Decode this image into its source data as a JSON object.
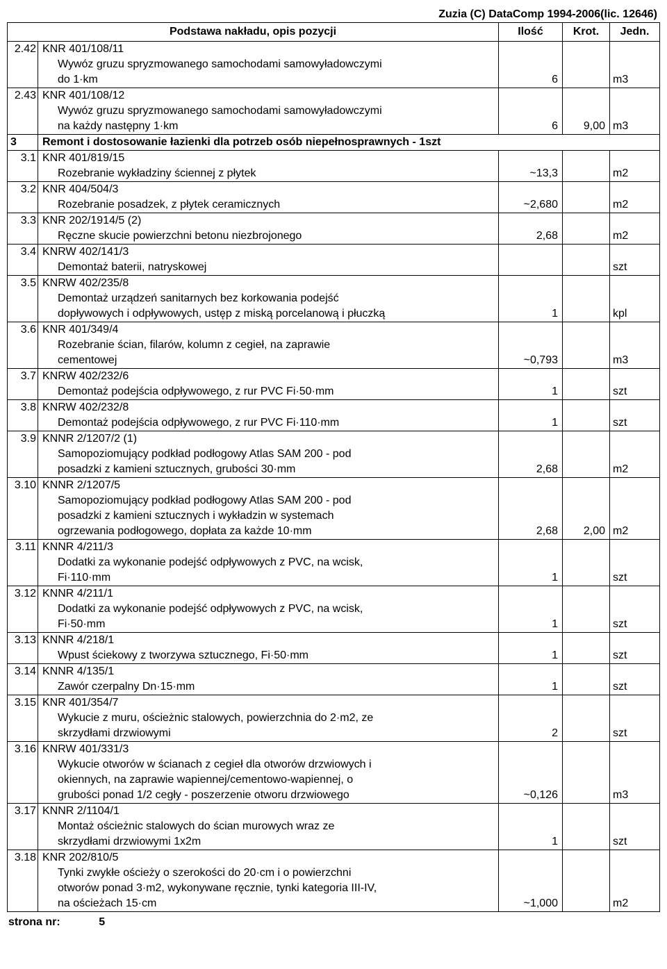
{
  "header_right": "Zuzia (C) DataComp 1994-2006(lic. 12646)",
  "columns": {
    "desc": "Podstawa nakładu, opis pozycji",
    "ilosc": "Ilość",
    "krot": "Krot.",
    "jedn": "Jedn."
  },
  "rows": [
    {
      "num": "2.42",
      "code": "KNR 401/108/11",
      "lines": [
        "Wywóz gruzu spryzmowanego samochodami samowyładowczymi",
        "do 1·km"
      ],
      "ilosc": "6",
      "krot": "",
      "jedn": "m3"
    },
    {
      "num": "2.43",
      "code": "KNR 401/108/12",
      "lines": [
        "Wywóz gruzu spryzmowanego samochodami samowyładowczymi",
        "na każdy następny 1·km"
      ],
      "ilosc": "6",
      "krot": "9,00",
      "jedn": "m3"
    },
    {
      "section": true,
      "num": "3",
      "desc": "Remont i dostosowanie łazienki dla potrzeb osób niepełnosprawnych - 1szt"
    },
    {
      "num": "3.1",
      "code": "KNR 401/819/15",
      "lines": [
        "Rozebranie wykładziny ściennej z płytek"
      ],
      "ilosc": "~13,3",
      "krot": "",
      "jedn": "m2"
    },
    {
      "num": "3.2",
      "code": "KNR 404/504/3",
      "lines": [
        "Rozebranie posadzek, z płytek ceramicznych"
      ],
      "ilosc": "~2,680",
      "krot": "",
      "jedn": "m2"
    },
    {
      "num": "3.3",
      "code": "KNR 202/1914/5 (2)",
      "lines": [
        "Ręczne skucie powierzchni betonu niezbrojonego"
      ],
      "ilosc": "2,68",
      "krot": "",
      "jedn": "m2"
    },
    {
      "num": "3.4",
      "code": "KNRW 402/141/3",
      "lines": [
        "Demontaż baterii, natryskowej"
      ],
      "ilosc": "",
      "krot": "",
      "jedn": "szt"
    },
    {
      "num": "3.5",
      "code": "KNRW 402/235/8",
      "lines": [
        "Demontaż urządzeń sanitarnych bez korkowania podejść",
        "dopływowych i odpływowych, ustęp z miską porcelanową i płuczką"
      ],
      "ilosc": "1",
      "krot": "",
      "jedn": "kpl"
    },
    {
      "num": "3.6",
      "code": "KNR 401/349/4",
      "lines": [
        "Rozebranie ścian, filarów, kolumn z cegieł, na zaprawie",
        "cementowej"
      ],
      "ilosc": "~0,793",
      "krot": "",
      "jedn": "m3"
    },
    {
      "num": "3.7",
      "code": "KNRW 402/232/6",
      "lines": [
        "Demontaż podejścia odpływowego, z rur PVC Fi·50·mm"
      ],
      "ilosc": "1",
      "krot": "",
      "jedn": "szt"
    },
    {
      "num": "3.8",
      "code": "KNRW 402/232/8",
      "lines": [
        "Demontaż podejścia odpływowego, z rur PVC Fi·110·mm"
      ],
      "ilosc": "1",
      "krot": "",
      "jedn": "szt"
    },
    {
      "num": "3.9",
      "code": "KNNR 2/1207/2 (1)",
      "lines": [
        "Samopoziomujący podkład podłogowy Atlas SAM 200 - pod",
        "posadzki z kamieni sztucznych, grubości 30·mm"
      ],
      "ilosc": "2,68",
      "krot": "",
      "jedn": "m2"
    },
    {
      "num": "3.10",
      "code": "KNNR 2/1207/5",
      "lines": [
        "Samopoziomujący podkład podłogowy Atlas SAM 200 - pod",
        "posadzki z kamieni sztucznych i wykładzin w systemach",
        "ogrzewania podłogowego, dopłata za każde 10·mm"
      ],
      "ilosc": "2,68",
      "krot": "2,00",
      "jedn": "m2"
    },
    {
      "num": "3.11",
      "code": "KNNR 4/211/3",
      "lines": [
        "Dodatki za wykonanie podejść odpływowych z PVC, na wcisk,",
        "Fi·110·mm"
      ],
      "ilosc": "1",
      "krot": "",
      "jedn": "szt"
    },
    {
      "num": "3.12",
      "code": "KNNR 4/211/1",
      "lines": [
        "Dodatki za wykonanie podejść odpływowych z PVC, na wcisk,",
        "Fi·50·mm"
      ],
      "ilosc": "1",
      "krot": "",
      "jedn": "szt"
    },
    {
      "num": "3.13",
      "code": "KNNR 4/218/1",
      "lines": [
        "Wpust ściekowy z tworzywa sztucznego, Fi·50·mm"
      ],
      "ilosc": "1",
      "krot": "",
      "jedn": "szt"
    },
    {
      "num": "3.14",
      "code": "KNNR 4/135/1",
      "lines": [
        "Zawór czerpalny Dn·15·mm"
      ],
      "ilosc": "1",
      "krot": "",
      "jedn": "szt"
    },
    {
      "num": "3.15",
      "code": "KNR 401/354/7",
      "lines": [
        "Wykucie z muru, ościeżnic stalowych, powierzchnia do 2·m2, ze",
        "skrzydłami drzwiowymi"
      ],
      "ilosc": "2",
      "krot": "",
      "jedn": "szt"
    },
    {
      "num": "3.16",
      "code": "KNRW 401/331/3",
      "lines": [
        "Wykucie otworów w ścianach z cegieł dla otworów drzwiowych i",
        "okiennych, na zaprawie wapiennej/cementowo-wapiennej, o",
        "grubości ponad 1/2 cegły - poszerzenie otworu drzwiowego"
      ],
      "ilosc": "~0,126",
      "krot": "",
      "jedn": "m3"
    },
    {
      "num": "3.17",
      "code": "KNNR 2/1104/1",
      "lines": [
        "Montaż ościeżnic stalowych do ścian murowych wraz ze",
        "skrzydłami drzwiowymi 1x2m"
      ],
      "ilosc": "1",
      "krot": "",
      "jedn": "szt"
    },
    {
      "num": "3.18",
      "code": "KNR 202/810/5",
      "lines": [
        "Tynki zwykłe ościeży o szerokości do 20·cm i o powierzchni",
        "otworów ponad 3·m2, wykonywane ręcznie, tynki kategoria III-IV,",
        "na ościeżach 15·cm"
      ],
      "ilosc": "~1,000",
      "krot": "",
      "jedn": "m2"
    }
  ],
  "footer": {
    "label": "strona nr:",
    "page": "5"
  }
}
